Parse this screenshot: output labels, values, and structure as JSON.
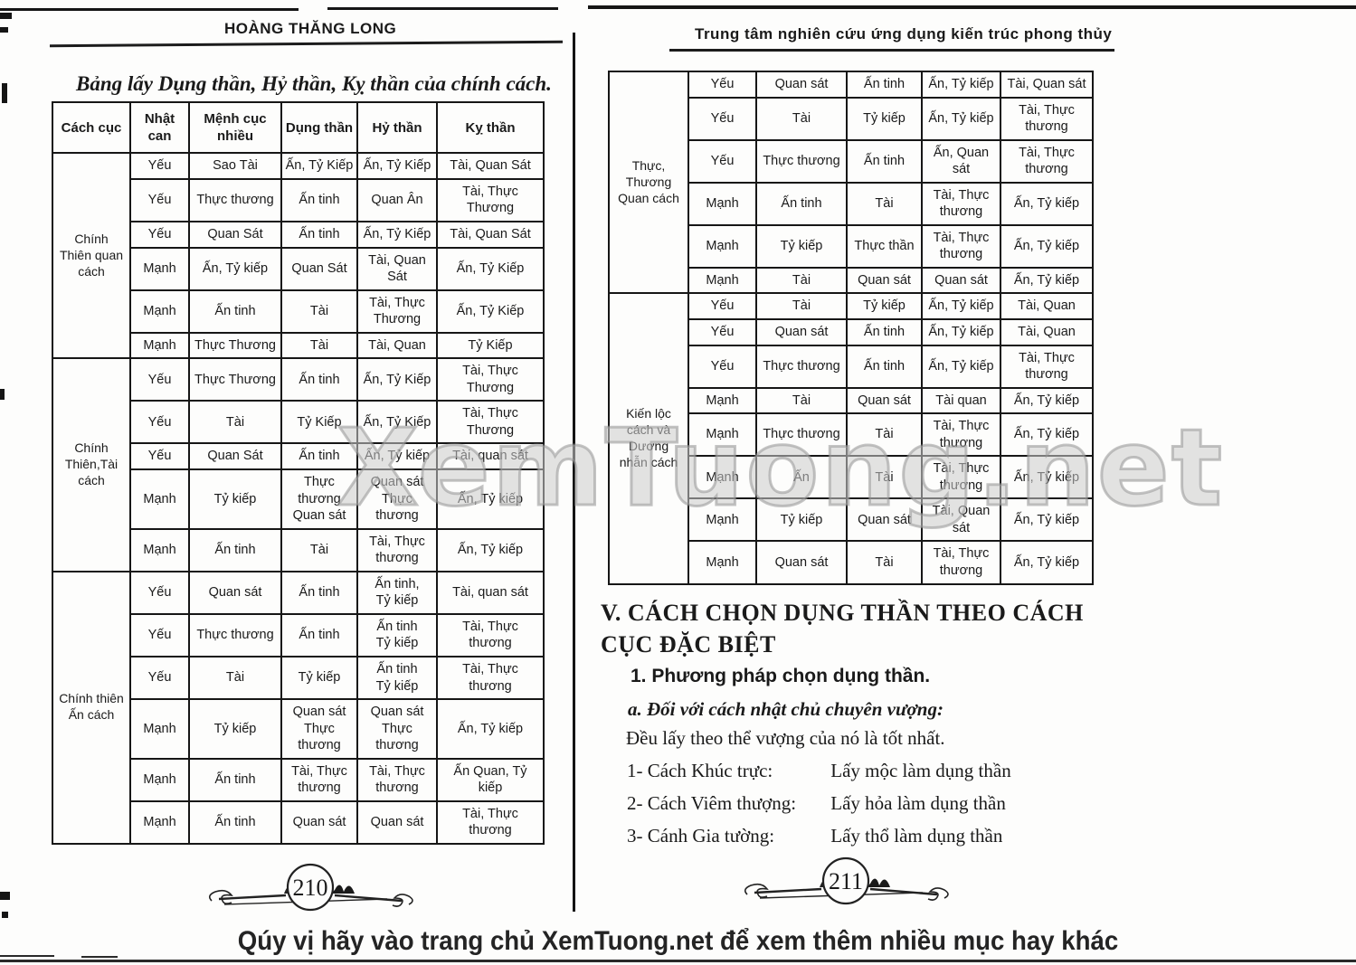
{
  "colors": {
    "ink": "#1a1a1a",
    "paper": "#fdfdfc",
    "watermark_gray": "#969696"
  },
  "watermark": {
    "text": "XemTuong.net"
  },
  "footer": {
    "note": "Qúy vị hãy vào trang chủ XemTuong.net để xem thêm nhiều mục hay khác"
  },
  "left_page": {
    "header": "HOÀNG THĂNG LONG",
    "title": "Bảng lấy Dụng thần, Hỷ thần, Kỵ thần của chính cách.",
    "page_number": "210",
    "table": {
      "headers": [
        "Cách cục",
        "Nhật can",
        "Mệnh cục nhiều",
        "Dụng thần",
        "Hỷ thần",
        "Kỵ thần"
      ],
      "groups": [
        {
          "label": "Chính\nThiên quan\ncách",
          "rows": [
            [
              "Yếu",
              "Sao Tài",
              "Ấn, Tỷ Kiếp",
              "Ấn, Tỷ Kiếp",
              "Tài, Quan Sát"
            ],
            [
              "Yếu",
              "Thực thương",
              "Ấn tinh",
              "Quan Ân",
              "Tài, Thực Thương"
            ],
            [
              "Yếu",
              "Quan Sát",
              "Ấn tinh",
              "Ấn, Tỷ Kiếp",
              "Tài, Quan Sát"
            ],
            [
              "Mạnh",
              "Ấn, Tỷ kiếp",
              "Quan Sát",
              "Tài, Quan Sát",
              "Ấn, Tỷ Kiếp"
            ],
            [
              "Mạnh",
              "Ấn tinh",
              "Tài",
              "Tài, Thực Thương",
              "Ấn, Tỷ Kiếp"
            ],
            [
              "Mạnh",
              "Thực Thương",
              "Tài",
              "Tài, Quan",
              "Tỷ Kiếp"
            ]
          ]
        },
        {
          "label": "Chính\nThiên,Tài\ncách",
          "rows": [
            [
              "Yếu",
              "Thực Thương",
              "Ấn tinh",
              "Ấn, Tỷ Kiếp",
              "Tài, Thực Thương"
            ],
            [
              "Yếu",
              "Tài",
              "Tỷ Kiếp",
              "Ấn, Tỷ Kiếp",
              "Tài, Thực Thương"
            ],
            [
              "Yếu",
              "Quan Sát",
              "Ấn tinh",
              "Ấn, Tỷ kiếp",
              "Tài, quan sát"
            ],
            [
              "Mạnh",
              "Tỷ kiếp",
              "Thực\nthương\nQuan sát",
              "Quan sát\nThực\nthương",
              "Ấn, Tỷ kiếp"
            ],
            [
              "Mạnh",
              "Ấn tinh",
              "Tài",
              "Tài, Thực\nthương",
              "Ấn, Tỷ kiếp"
            ]
          ]
        },
        {
          "label": "Chính thiên\nẤn cách",
          "rows": [
            [
              "Yếu",
              "Quan sát",
              "Ấn tinh",
              "Ấn tinh,\nTỷ kiếp",
              "Tài, quan sát"
            ],
            [
              "Yếu",
              "Thực thương",
              "Ấn tinh",
              "Ấn tinh\nTỷ kiếp",
              "Tài, Thực\nthương"
            ],
            [
              "Yếu",
              "Tài",
              "Tỷ kiếp",
              "Ấn tinh\nTỷ kiếp",
              "Tài, Thực\nthương"
            ],
            [
              "Mạnh",
              "Tỷ kiếp",
              "Quan sát\nThực\nthương",
              "Quan sát\nThực\nthương",
              "Ấn, Tỷ kiếp"
            ],
            [
              "Mạnh",
              "Ấn tinh",
              "Tài, Thực\nthương",
              "Tài, Thực\nthương",
              "Ấn Quan, Tỷ\nkiếp"
            ],
            [
              "Mạnh",
              "Ấn tinh",
              "Quan sát",
              "Quan sát",
              "Tài, Thực\nthương"
            ]
          ]
        }
      ]
    }
  },
  "right_page": {
    "header": "Trung tâm nghiên cứu ứng dụng kiến trúc phong thủy",
    "page_number": "211",
    "table": {
      "groups": [
        {
          "label": "Thực,\nThương\nQuan cách",
          "rows": [
            [
              "Yếu",
              "Quan sát",
              "Ấn tinh",
              "Ấn, Tỷ kiếp",
              "Tài, Quan sát"
            ],
            [
              "Yếu",
              "Tài",
              "Tỷ kiếp",
              "Ấn, Tỷ kiếp",
              "Tài, Thực\nthương"
            ],
            [
              "Yếu",
              "Thực thương",
              "Ấn tinh",
              "Ấn, Quan\nsát",
              "Tài, Thực\nthương"
            ],
            [
              "Mạnh",
              "Ấn tinh",
              "Tài",
              "Tài, Thực\nthương",
              "Ấn, Tỷ kiếp"
            ],
            [
              "Mạnh",
              "Tỷ kiếp",
              "Thực thần",
              "Tài, Thực\nthương",
              "Ấn, Tỷ kiếp"
            ],
            [
              "Mạnh",
              "Tài",
              "Quan sát",
              "Quan sát",
              "Ấn, Tỷ kiếp"
            ]
          ]
        },
        {
          "label": "Kiến lộc\ncách và\nDương\nnhẫn cách",
          "rows": [
            [
              "Yếu",
              "Tài",
              "Tỷ kiếp",
              "Ấn, Tỷ kiếp",
              "Tài, Quan"
            ],
            [
              "Yếu",
              "Quan sát",
              "Ấn tinh",
              "Ấn, Tỷ kiếp",
              "Tài, Quan"
            ],
            [
              "Yếu",
              "Thực thương",
              "Ấn tinh",
              "Ấn, Tỷ kiếp",
              "Tài, Thực\nthương"
            ],
            [
              "Mạnh",
              "Tài",
              "Quan sát",
              "Tài quan",
              "Ấn, Tỷ kiếp"
            ],
            [
              "Mạnh",
              "Thực thương",
              "Tài",
              "Tài, Thực\nthương",
              "Ấn, Tỷ kiếp"
            ],
            [
              "Mạnh",
              "Ấn",
              "Tài",
              "Tài, Thực\nthương",
              "Ấn, Tỷ kiếp"
            ],
            [
              "Mạnh",
              "Tỷ kiếp",
              "Quan sát",
              "Tài, Quan\nsát",
              "Ấn, Tỷ kiếp"
            ],
            [
              "Mạnh",
              "Quan sát",
              "Tài",
              "Tài, Thực\nthương",
              "Ấn, Tỷ kiếp"
            ]
          ]
        }
      ]
    },
    "section": {
      "heading": "V. CÁCH CHỌN DỤNG THẦN THEO CÁCH CỤC ĐẶC BIỆT",
      "sub_heading": "1. Phương pháp chọn dụng thần.",
      "item_a": "a. Đối với cách nhật chủ chuyên vượng:",
      "body": "Đều lấy theo thể vượng của nó là tốt nhất.",
      "list": [
        {
          "term": "1- Cách Khúc trực:",
          "def": "Lấy mộc làm dụng thần"
        },
        {
          "term": "2- Cách Viêm thượng:",
          "def": "Lấy hỏa làm dụng thần"
        },
        {
          "term": "3- Cánh Gia tường:",
          "def": "Lấy thổ làm dụng thần"
        }
      ]
    }
  }
}
